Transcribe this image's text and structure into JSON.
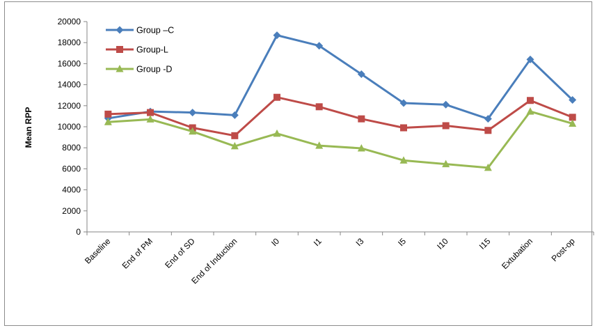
{
  "chart_data": {
    "type": "line",
    "categories": [
      "Baseline",
      "End of PM",
      "End of SD",
      "End of Induction",
      "I0",
      "I1",
      "I3",
      "I5",
      "I10",
      "I15",
      "Extubation",
      "Post-op"
    ],
    "series": [
      {
        "name": "Group –C",
        "color": "#4a7ebb",
        "marker": "diamond",
        "values": [
          10800,
          11450,
          11350,
          11100,
          18700,
          17700,
          15000,
          12250,
          12100,
          10750,
          16400,
          12550
        ]
      },
      {
        "name": "Group-L",
        "color": "#be4b48",
        "marker": "square",
        "values": [
          11200,
          11350,
          9900,
          9150,
          12800,
          11900,
          10750,
          9900,
          10100,
          9650,
          12500,
          10900
        ]
      },
      {
        "name": "Group -D",
        "color": "#98b954",
        "marker": "triangle",
        "values": [
          10450,
          10700,
          9550,
          8150,
          9350,
          8200,
          7950,
          6800,
          6450,
          6100,
          11450,
          10300
        ]
      }
    ],
    "ylabel": "Mean RPP",
    "xlabel": "",
    "ylim": [
      0,
      20000
    ],
    "yticks": [
      0,
      2000,
      4000,
      6000,
      8000,
      10000,
      12000,
      14000,
      16000,
      18000,
      20000
    ],
    "grid": false,
    "legend_position": "top-left"
  }
}
